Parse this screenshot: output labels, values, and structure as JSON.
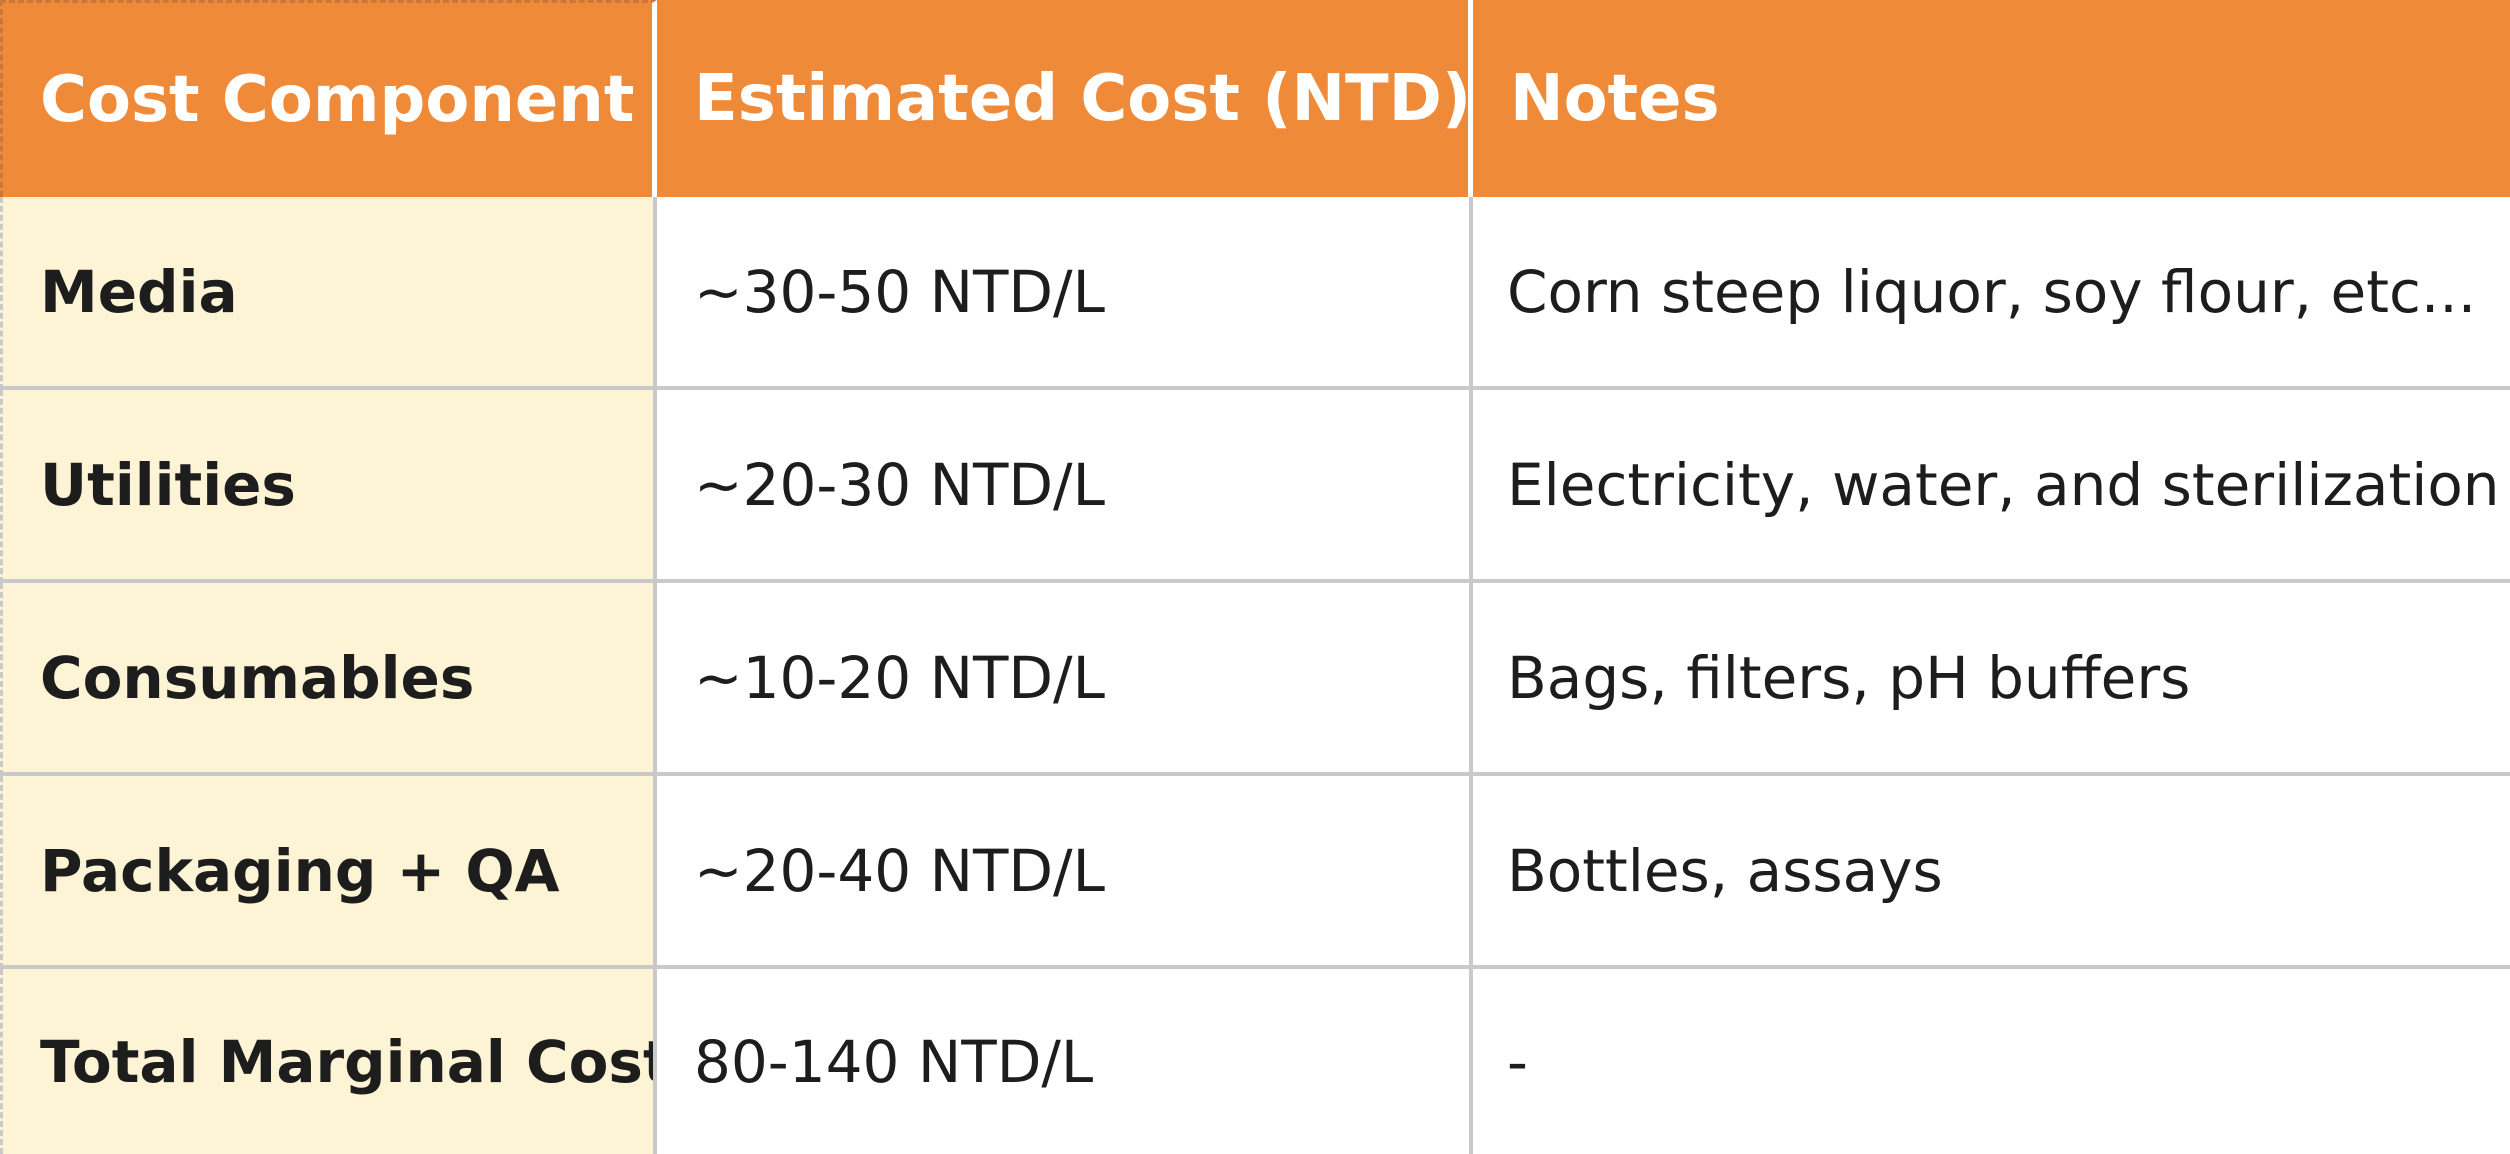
{
  "table": {
    "headers": [
      "Cost Component",
      "Estimated Cost (NTD)",
      "Notes"
    ],
    "rows": [
      {
        "component": "Media",
        "cost": "~30-50 NTD/L",
        "notes": "Corn steep liquor, soy flour, etc..."
      },
      {
        "component": "Utilities",
        "cost": "~20-30 NTD/L",
        "notes": "Electricity, water, and sterilization"
      },
      {
        "component": "Consumables",
        "cost": "~10-20 NTD/L",
        "notes": "Bags, filters, pH buffers"
      },
      {
        "component": "Packaging + QA",
        "cost": "~20-40 NTD/L",
        "notes": "Bottles, assays"
      },
      {
        "component": "Total Marginal Cost",
        "cost": "80-140 NTD/L",
        "notes": "-"
      }
    ]
  },
  "colors": {
    "header_bg": "#ef8a39",
    "header_text": "#ffffff",
    "label_bg": "#fdf3d5",
    "grid_line": "#c9c9c9",
    "body_text": "#1d1d1d"
  }
}
